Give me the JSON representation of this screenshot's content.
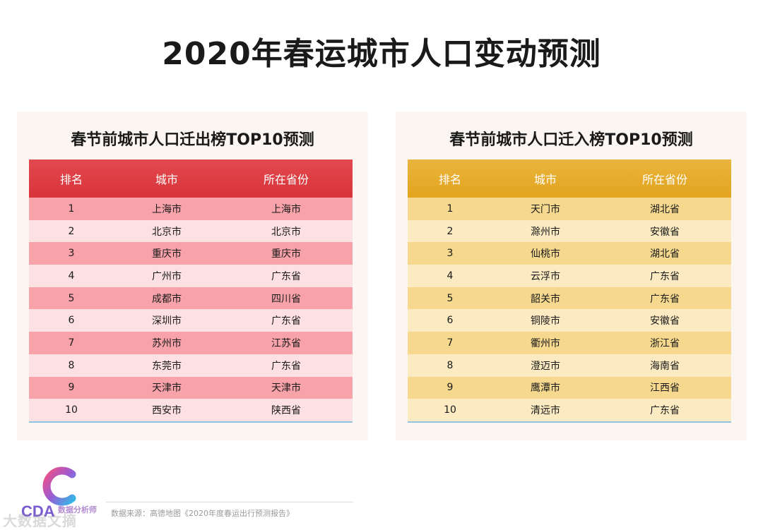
{
  "title": "2020年春运城市人口变动预测",
  "chart_data": [
    {
      "type": "table",
      "title": "春节前城市人口迁出榜TOP10预测",
      "columns": [
        "排名",
        "城市",
        "所在省份"
      ],
      "rows": [
        [
          "1",
          "上海市",
          "上海市"
        ],
        [
          "2",
          "北京市",
          "北京市"
        ],
        [
          "3",
          "重庆市",
          "重庆市"
        ],
        [
          "4",
          "广州市",
          "广东省"
        ],
        [
          "5",
          "成都市",
          "四川省"
        ],
        [
          "6",
          "深圳市",
          "广东省"
        ],
        [
          "7",
          "苏州市",
          "江苏省"
        ],
        [
          "8",
          "东莞市",
          "广东省"
        ],
        [
          "9",
          "天津市",
          "天津市"
        ],
        [
          "10",
          "西安市",
          "陕西省"
        ]
      ],
      "header_color": "#dd3d43"
    },
    {
      "type": "table",
      "title": "春节前城市人口迁入榜TOP10预测",
      "columns": [
        "排名",
        "城市",
        "所在省份"
      ],
      "rows": [
        [
          "1",
          "天门市",
          "湖北省"
        ],
        [
          "2",
          "滁州市",
          "安徽省"
        ],
        [
          "3",
          "仙桃市",
          "湖北省"
        ],
        [
          "4",
          "云浮市",
          "广东省"
        ],
        [
          "5",
          "韶关市",
          "广东省"
        ],
        [
          "6",
          "铜陵市",
          "安徽省"
        ],
        [
          "7",
          "衢州市",
          "浙江省"
        ],
        [
          "8",
          "澄迈市",
          "海南省"
        ],
        [
          "9",
          "鹰潭市",
          "江西省"
        ],
        [
          "10",
          "清远市",
          "广东省"
        ]
      ],
      "header_color": "#e6ac2c"
    }
  ],
  "footer": {
    "source": "数据来源：高德地图《2020年度春运出行预测报告》",
    "logo_text": "CDA",
    "logo_subtext": "数据分析师",
    "watermark": "大数据文摘"
  }
}
